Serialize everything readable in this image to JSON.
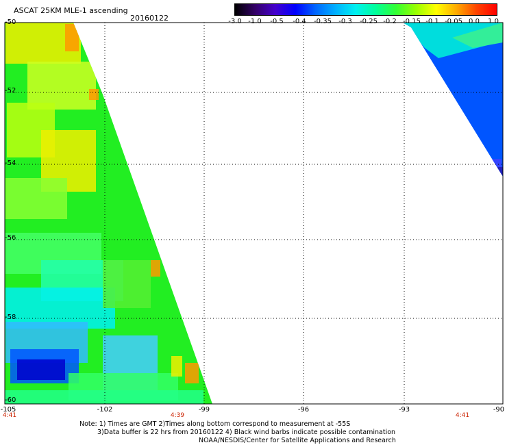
{
  "header": {
    "title": "ASCAT 25KM MLE-1 ascending",
    "date": "20160122"
  },
  "colorbar": {
    "labels": [
      "-3.0",
      "-1.0",
      "-0.5",
      "-0.4",
      "-0.35",
      "-0.3",
      "-0.25",
      "-0.2",
      "-0.15",
      "-0.1",
      "-0.05",
      "0.0",
      "1.0"
    ]
  },
  "axes": {
    "x_ticks": [
      "-105",
      "-102",
      "-99",
      "-96",
      "-93",
      "-90"
    ],
    "y_ticks": [
      "-50",
      "-52",
      "-54",
      "-56",
      "-58",
      "-60"
    ],
    "lon_range": [
      -105,
      -90
    ],
    "lat_range": [
      -60,
      -50
    ]
  },
  "times": [
    "4:41",
    "4:39",
    "4:41"
  ],
  "notes": {
    "line1": "Note: 1) Times are GMT 2)Times along bottom correspond to measurement at -55S",
    "line2": "3)Data buffer is 22 hrs from 20160122 4) Black wind barbs indicate possible contamination",
    "line3": "NOAA/NESDIS/Center for Satellite Applications and Research"
  },
  "colors": {
    "green": "#22ee22",
    "yellow": "#eeee00",
    "orange": "#ff9900",
    "cyan": "#00f0f0",
    "blue": "#0055ff",
    "dark_blue": "#0000cc"
  }
}
